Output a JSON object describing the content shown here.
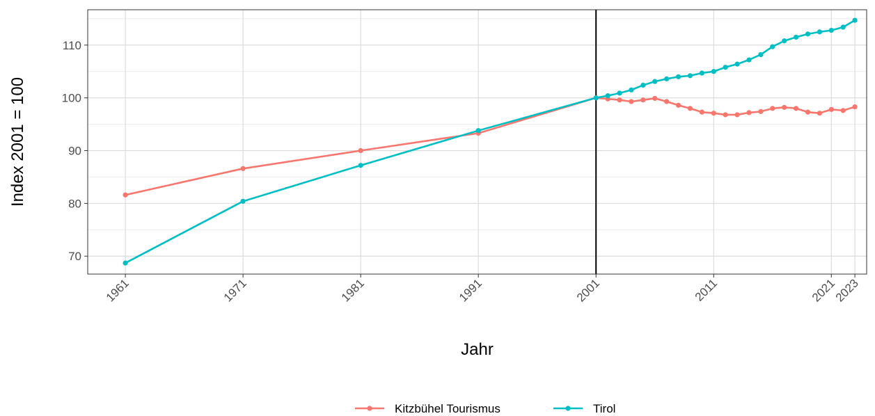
{
  "chart_data": {
    "type": "line",
    "xlabel": "Jahr",
    "ylabel": "Index 2001 = 100",
    "xlim": [
      1957.8,
      1924.0
    ],
    "ylim": [
      66.6,
      116.7
    ],
    "x_ticks": [
      1961,
      1971,
      1981,
      1991,
      2001,
      2011,
      2021,
      2023
    ],
    "y_ticks": [
      70,
      80,
      90,
      100,
      110
    ],
    "grid": true,
    "legend_position": "bottom",
    "vline_x": 2001,
    "series": [
      {
        "name": "Kitzbühel Tourismus",
        "color": "#f8766d",
        "x": [
          1961,
          1971,
          1981,
          1991,
          2001,
          2002,
          2003,
          2004,
          2005,
          2006,
          2007,
          2008,
          2009,
          2010,
          2011,
          2012,
          2013,
          2014,
          2015,
          2016,
          2017,
          2018,
          2019,
          2020,
          2021,
          2022,
          2023
        ],
        "values": [
          81.6,
          86.6,
          90.0,
          93.3,
          100.0,
          99.8,
          99.6,
          99.3,
          99.6,
          99.9,
          99.3,
          98.6,
          98.0,
          97.3,
          97.1,
          96.8,
          96.8,
          97.2,
          97.4,
          98.0,
          98.2,
          98.0,
          97.3,
          97.1,
          97.8,
          97.6,
          98.3
        ]
      },
      {
        "name": "Tirol",
        "color": "#00bfc4",
        "x": [
          1961,
          1971,
          1981,
          1991,
          2001,
          2002,
          2003,
          2004,
          2005,
          2006,
          2007,
          2008,
          2009,
          2010,
          2011,
          2012,
          2013,
          2014,
          2015,
          2016,
          2017,
          2018,
          2019,
          2020,
          2021,
          2022,
          2023
        ],
        "values": [
          68.7,
          80.4,
          87.2,
          93.8,
          100.0,
          100.4,
          100.9,
          101.5,
          102.4,
          103.1,
          103.6,
          104.0,
          104.2,
          104.7,
          105.0,
          105.8,
          106.4,
          107.2,
          108.2,
          109.7,
          110.8,
          111.5,
          112.1,
          112.5,
          112.8,
          113.4,
          114.7
        ]
      }
    ]
  }
}
